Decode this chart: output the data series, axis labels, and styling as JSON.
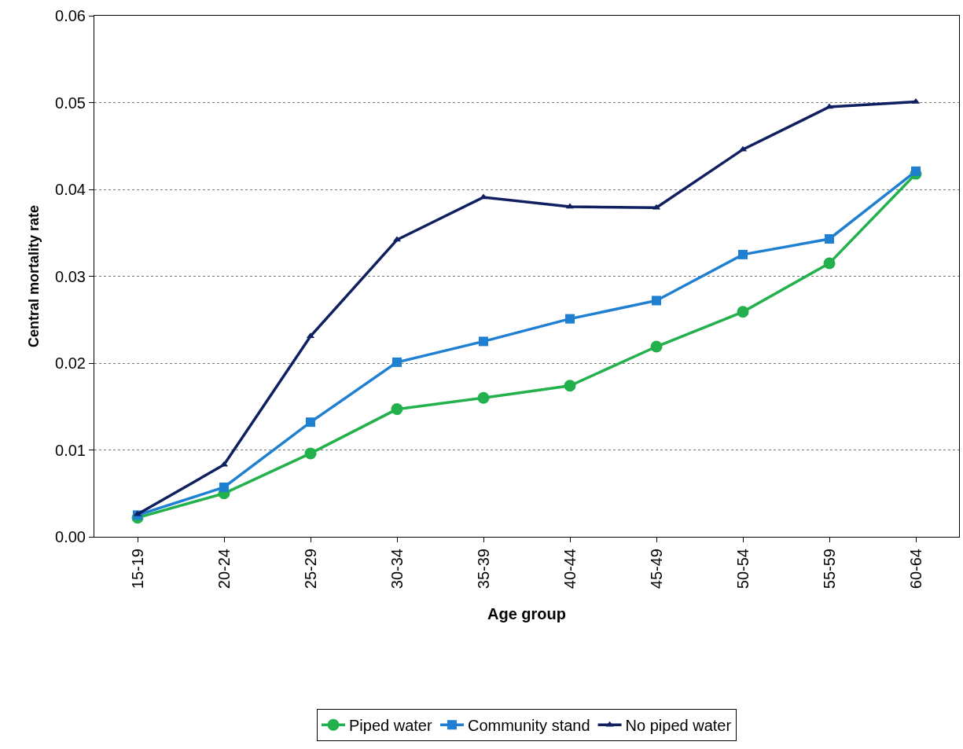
{
  "chart_data": {
    "type": "line",
    "xlabel": "Age group",
    "ylabel": "Central mortality rate",
    "categories": [
      "15-19",
      "20-24",
      "25-29",
      "30-34",
      "35-39",
      "40-44",
      "45-49",
      "50-54",
      "55-59",
      "60-64"
    ],
    "series": [
      {
        "name": "Piped water",
        "color": "#22b14c",
        "marker": "circle",
        "values": [
          0.0022,
          0.005,
          0.0096,
          0.0147,
          0.016,
          0.0174,
          0.0219,
          0.0259,
          0.0315,
          0.0418
        ]
      },
      {
        "name": "Community stand",
        "color": "#1f7fd0",
        "marker": "square",
        "values": [
          0.0025,
          0.0057,
          0.0132,
          0.0201,
          0.0225,
          0.0251,
          0.0272,
          0.0325,
          0.0343,
          0.0421
        ]
      },
      {
        "name": "No piped water",
        "color": "#0f1f5f",
        "marker": "triangle",
        "values": [
          0.0026,
          0.0083,
          0.0231,
          0.0342,
          0.0391,
          0.038,
          0.0379,
          0.0446,
          0.0495,
          0.0501
        ]
      }
    ],
    "ylim": [
      0,
      0.06
    ],
    "yticks": [
      {
        "value": 0,
        "label": "0.00"
      },
      0.01,
      0.02,
      0.03,
      0.04,
      0.05,
      0.06
    ],
    "grid": "y",
    "legend": "bottom",
    "line_style": "solid"
  }
}
